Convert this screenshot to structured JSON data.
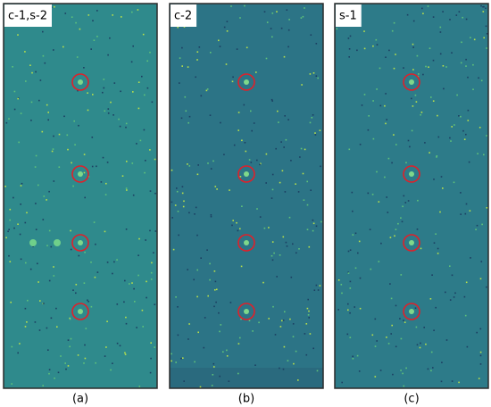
{
  "panels": [
    {
      "tag": "c-1,s-2",
      "caption": "(a)"
    },
    {
      "tag": "c-2",
      "caption": "(b)"
    },
    {
      "tag": "s-1",
      "caption": "(c)"
    }
  ]
}
